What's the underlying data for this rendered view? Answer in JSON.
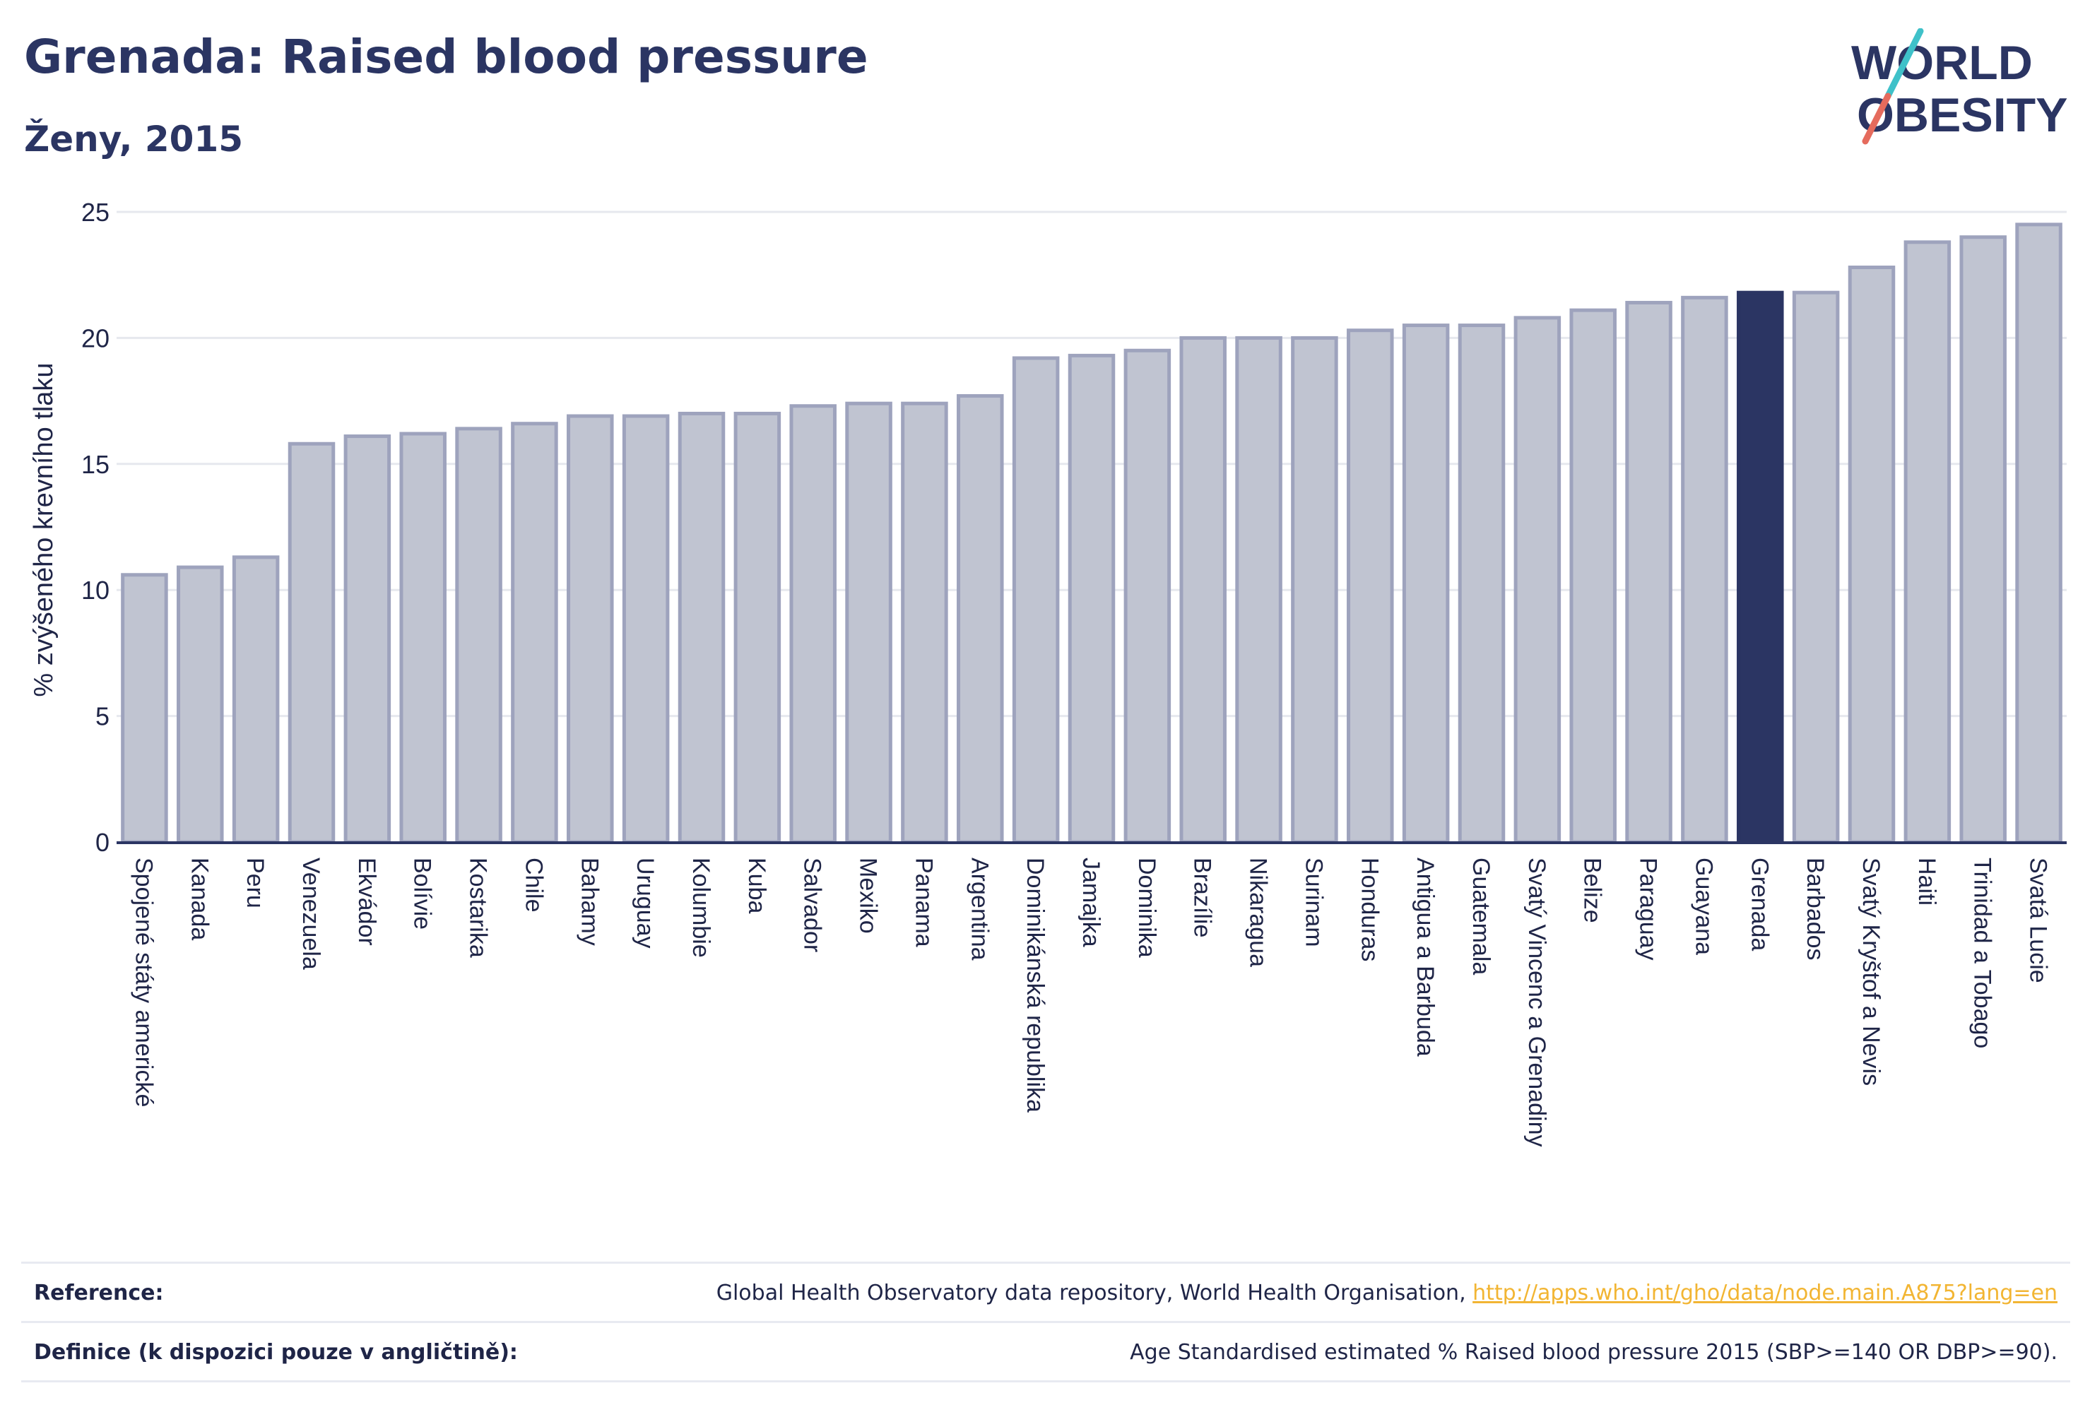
{
  "header": {
    "title": "Grenada: Raised blood pressure",
    "subtitle": "Ženy, 2015"
  },
  "logo": {
    "line1_left": "W",
    "line1_o": "O",
    "line1_right": "RLD",
    "line2_o": "O",
    "line2_right": "BESITY",
    "colors": {
      "text": "#2b3563",
      "slash_top": "#3fc1c9",
      "slash_bottom": "#e56b5d"
    }
  },
  "footer": {
    "reference_label": "Reference:",
    "reference_text": "Global Health Observatory data repository, World Health Organisation, ",
    "reference_link": "http://apps.who.int/gho/data/node.main.A875?lang=en",
    "definition_label": "Definice (k dispozici pouze v angličtině):",
    "definition_text": "Age Standardised estimated % Raised blood pressure 2015 (SBP>=140 OR DBP>=90)."
  },
  "chart_data": {
    "type": "bar",
    "ylabel": "% zvýšeného krevního tlaku",
    "xlabel": "",
    "ylim": [
      0,
      25
    ],
    "yticks": [
      0,
      5,
      10,
      15,
      20,
      25
    ],
    "grid": true,
    "highlight": "Grenada",
    "colors": {
      "bar": "#c0c4d1",
      "bar_border": "#9ea3bd",
      "highlight": "#2b3563",
      "grid": "#e6e8ee",
      "axis": "#2b3563"
    },
    "categories": [
      "Spojené státy americké",
      "Kanada",
      "Peru",
      "Venezuela",
      "Ekvádor",
      "Bolívie",
      "Kostarika",
      "Chile",
      "Bahamy",
      "Uruguay",
      "Kolumbie",
      "Kuba",
      "Salvador",
      "Mexiko",
      "Panama",
      "Argentina",
      "Dominikánská republika",
      "Jamajka",
      "Dominika",
      "Brazílie",
      "Nikaragua",
      "Surinam",
      "Honduras",
      "Antigua a Barbuda",
      "Guatemala",
      "Svatý Vincenc a Grenadiny",
      "Belize",
      "Paraguay",
      "Guayana",
      "Grenada",
      "Barbados",
      "Svatý Kryštof a Nevis",
      "Haiti",
      "Trinidad a Tobago",
      "Svatá Lucie"
    ],
    "values": [
      10.6,
      10.9,
      11.3,
      15.8,
      16.1,
      16.2,
      16.4,
      16.6,
      16.9,
      16.9,
      17.0,
      17.0,
      17.3,
      17.4,
      17.4,
      17.7,
      19.2,
      19.3,
      19.5,
      20.0,
      20.0,
      20.0,
      20.3,
      20.5,
      20.5,
      20.8,
      21.1,
      21.4,
      21.6,
      21.8,
      21.8,
      22.8,
      23.8,
      24.0,
      24.5
    ]
  }
}
